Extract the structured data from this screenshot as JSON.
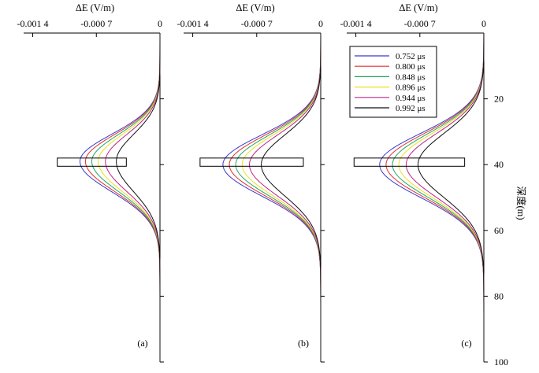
{
  "chart_data": {
    "type": "line",
    "xaxis": {
      "label": "ΔE (V/m)",
      "ticks": [
        -0.0014,
        -0.0007,
        0
      ],
      "tick_labels": [
        "-0.001 4",
        "-0.000 7",
        "0"
      ],
      "range": [
        -0.0015,
        0
      ]
    },
    "yaxis": {
      "label": "深度(m)",
      "range": [
        0,
        100
      ],
      "ticks": [
        20,
        40,
        60,
        80,
        100
      ],
      "tick_labels": [
        "20",
        "40",
        "60",
        "80",
        "100"
      ],
      "inverted": true
    },
    "series_styles": [
      {
        "name": "0.752 μs",
        "color": "#3a3ad0"
      },
      {
        "name": "0.800 μs",
        "color": "#e03030"
      },
      {
        "name": "0.848 μs",
        "color": "#20a860"
      },
      {
        "name": "0.896 μs",
        "color": "#e8e020"
      },
      {
        "name": "0.944 μs",
        "color": "#c0208a"
      },
      {
        "name": "0.992 μs",
        "color": "#111111"
      }
    ],
    "legend": {
      "placement": "top-left of panel (c)"
    },
    "panels": [
      {
        "label": "(a)",
        "anomaly_box": {
          "depth_top": 38,
          "depth_bottom": 40.5,
          "dE_left": -0.00113,
          "dE_right": -0.00037
        },
        "series": [
          {
            "name": "0.752 μs",
            "peak_dE": -0.00088,
            "peak_depth": 39,
            "sigma_upper": 8.2,
            "sigma_lower": 9.2
          },
          {
            "name": "0.800 μs",
            "peak_dE": -0.00082,
            "peak_depth": 39,
            "sigma_upper": 8.2,
            "sigma_lower": 9.2
          },
          {
            "name": "0.848 μs",
            "peak_dE": -0.00075,
            "peak_depth": 39,
            "sigma_upper": 8.2,
            "sigma_lower": 9.2
          },
          {
            "name": "0.896 μs",
            "peak_dE": -0.00068,
            "peak_depth": 39,
            "sigma_upper": 8.2,
            "sigma_lower": 9.2
          },
          {
            "name": "0.944 μs",
            "peak_dE": -0.0006,
            "peak_depth": 39,
            "sigma_upper": 8.2,
            "sigma_lower": 9.2
          },
          {
            "name": "0.992 μs",
            "peak_dE": -0.00048,
            "peak_depth": 39,
            "sigma_upper": 8.2,
            "sigma_lower": 9.2
          }
        ]
      },
      {
        "label": "(b)",
        "anomaly_box": {
          "depth_top": 38,
          "depth_bottom": 40.5,
          "dE_left": -0.00132,
          "dE_right": -0.00019
        },
        "series": [
          {
            "name": "0.752 μs",
            "peak_dE": -0.00107,
            "peak_depth": 40,
            "sigma_upper": 9.0,
            "sigma_lower": 9.5
          },
          {
            "name": "0.800 μs",
            "peak_dE": -0.001,
            "peak_depth": 40,
            "sigma_upper": 9.0,
            "sigma_lower": 9.5
          },
          {
            "name": "0.848 μs",
            "peak_dE": -0.00093,
            "peak_depth": 40,
            "sigma_upper": 9.0,
            "sigma_lower": 9.5
          },
          {
            "name": "0.896 μs",
            "peak_dE": -0.00086,
            "peak_depth": 40,
            "sigma_upper": 9.0,
            "sigma_lower": 9.5
          },
          {
            "name": "0.944 μs",
            "peak_dE": -0.00078,
            "peak_depth": 40,
            "sigma_upper": 9.0,
            "sigma_lower": 9.5
          },
          {
            "name": "0.992 μs",
            "peak_dE": -0.00065,
            "peak_depth": 40,
            "sigma_upper": 9.0,
            "sigma_lower": 9.5
          }
        ]
      },
      {
        "label": "(c)",
        "anomaly_box": {
          "depth_top": 38,
          "depth_bottom": 40.5,
          "dE_left": -0.00142,
          "dE_right": -0.00021
        },
        "series": [
          {
            "name": "0.752 μs",
            "peak_dE": -0.00114,
            "peak_depth": 40,
            "sigma_upper": 9.5,
            "sigma_lower": 10.0
          },
          {
            "name": "0.800 μs",
            "peak_dE": -0.00107,
            "peak_depth": 40,
            "sigma_upper": 9.5,
            "sigma_lower": 10.0
          },
          {
            "name": "0.848 μs",
            "peak_dE": -0.001,
            "peak_depth": 40,
            "sigma_upper": 9.5,
            "sigma_lower": 10.0
          },
          {
            "name": "0.896 μs",
            "peak_dE": -0.00093,
            "peak_depth": 40,
            "sigma_upper": 9.5,
            "sigma_lower": 10.0
          },
          {
            "name": "0.944 μs",
            "peak_dE": -0.00085,
            "peak_depth": 40,
            "sigma_upper": 9.5,
            "sigma_lower": 10.0
          },
          {
            "name": "0.992 μs",
            "peak_dE": -0.00072,
            "peak_depth": 40,
            "sigma_upper": 9.5,
            "sigma_lower": 10.0
          }
        ]
      }
    ]
  }
}
